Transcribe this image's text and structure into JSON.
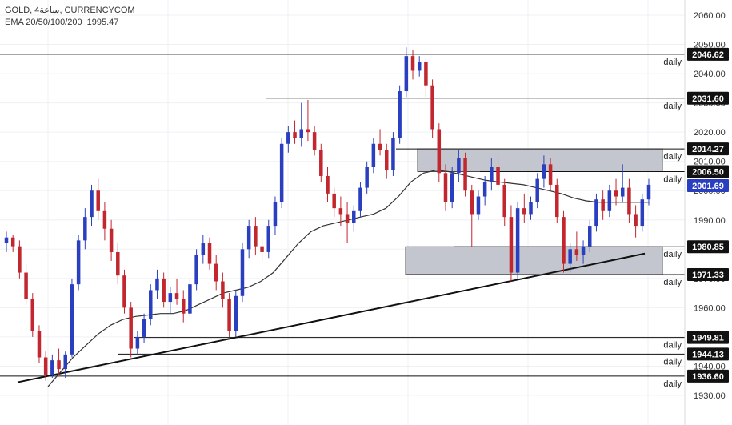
{
  "legend": {
    "symbol_line": "GOLD, 4ساعة, CURRENCYCOM",
    "ema_label": "EMA 20/50/100/200",
    "ema_value": "1995.47"
  },
  "chart_data": {
    "type": "candlestick",
    "symbol": "GOLD",
    "timeframe": "4ساعة",
    "source": "CURRENCYCOM",
    "ylim": [
      1927,
      2066
    ],
    "y_ticks": [
      "2060.00",
      "2050.00",
      "2040.00",
      "2030.00",
      "2020.00",
      "2010.00",
      "2000.00",
      "1990.00",
      "1980.00",
      "1970.00",
      "1960.00",
      "1950.00",
      "1940.00",
      "1930.00"
    ],
    "colors": {
      "up": "#2a3fbf",
      "down": "#c2262e",
      "level_line": "#111111",
      "zone_fill": "#c4c6cf",
      "ema": "#333333",
      "tag_bg": "#111111",
      "grid": "#eef0f4"
    },
    "levels": [
      {
        "value": 2046.62,
        "label": "2046.62",
        "daily": "daily"
      },
      {
        "value": 2031.6,
        "label": "2031.60",
        "daily": "daily"
      },
      {
        "value": 2014.27,
        "label": "2014.27",
        "daily": "daily"
      },
      {
        "value": 2006.5,
        "label": "2006.50",
        "daily": "daily"
      },
      {
        "value": 2001.69,
        "label": "2001.69",
        "daily": "",
        "current": true
      },
      {
        "value": 1980.85,
        "label": "1980.85",
        "daily": "daily"
      },
      {
        "value": 1971.33,
        "label": "1971.33",
        "daily": "daily"
      },
      {
        "value": 1949.81,
        "label": "1949.81",
        "daily": "daily"
      },
      {
        "value": 1944.13,
        "label": "1944.13",
        "daily": "daily"
      },
      {
        "value": 1936.6,
        "label": "1936.60",
        "daily": "daily"
      }
    ],
    "zones": [
      {
        "from": 2006.5,
        "to": 2014.27
      },
      {
        "from": 1971.33,
        "to": 1980.85
      }
    ],
    "trendline": {
      "start_price": 1934.5,
      "end_price": 1978.5
    },
    "ema_path": [
      1933,
      1938,
      1943,
      1947,
      1951,
      1954,
      1956,
      1957,
      1957.5,
      1958,
      1958,
      1959,
      1961,
      1963,
      1965,
      1966,
      1967,
      1969,
      1972,
      1977,
      1982,
      1986,
      1988,
      1989,
      1990,
      1991,
      1992,
      1994,
      1998,
      2003,
      2006,
      2007,
      2006.5,
      2005.5,
      2004.5,
      2003.5,
      2003,
      2002.5,
      2002,
      2001,
      2000,
      1999,
      1997.5,
      1996.5,
      1996,
      1996,
      1996,
      1996,
      1996
    ],
    "candles": [
      [
        1982,
        1986,
        1979,
        1984
      ],
      [
        1984,
        1985,
        1979,
        1981
      ],
      [
        1981,
        1983,
        1970,
        1972
      ],
      [
        1972,
        1975,
        1961,
        1963
      ],
      [
        1963,
        1965,
        1950,
        1952
      ],
      [
        1952,
        1954,
        1941,
        1943
      ],
      [
        1943,
        1945,
        1935,
        1937
      ],
      [
        1937,
        1944,
        1936,
        1942
      ],
      [
        1942,
        1946,
        1937,
        1939
      ],
      [
        1939,
        1945,
        1936,
        1944
      ],
      [
        1944,
        1970,
        1943,
        1968
      ],
      [
        1968,
        1985,
        1966,
        1983
      ],
      [
        1983,
        1994,
        1980,
        1991
      ],
      [
        1991,
        2002,
        1988,
        2000
      ],
      [
        2000,
        2004,
        1990,
        1993
      ],
      [
        1993,
        1996,
        1983,
        1987
      ],
      [
        1987,
        1990,
        1976,
        1979
      ],
      [
        1979,
        1982,
        1968,
        1971
      ],
      [
        1971,
        1973,
        1958,
        1960
      ],
      [
        1960,
        1962,
        1943,
        1946
      ],
      [
        1946,
        1952,
        1944,
        1950
      ],
      [
        1950,
        1958,
        1948,
        1956
      ],
      [
        1956,
        1968,
        1954,
        1966
      ],
      [
        1966,
        1973,
        1963,
        1970
      ],
      [
        1970,
        1972,
        1960,
        1962
      ],
      [
        1962,
        1967,
        1958,
        1965
      ],
      [
        1965,
        1970,
        1961,
        1963
      ],
      [
        1963,
        1966,
        1955,
        1958
      ],
      [
        1958,
        1970,
        1957,
        1968
      ],
      [
        1968,
        1980,
        1966,
        1978
      ],
      [
        1978,
        1985,
        1975,
        1982
      ],
      [
        1982,
        1984,
        1973,
        1975
      ],
      [
        1975,
        1978,
        1966,
        1969
      ],
      [
        1969,
        1972,
        1960,
        1963
      ],
      [
        1963,
        1965,
        1950,
        1952
      ],
      [
        1952,
        1966,
        1950,
        1964
      ],
      [
        1964,
        1982,
        1962,
        1980
      ],
      [
        1980,
        1990,
        1977,
        1988
      ],
      [
        1988,
        1991,
        1978,
        1981
      ],
      [
        1981,
        1984,
        1976,
        1979
      ],
      [
        1979,
        1990,
        1977,
        1988
      ],
      [
        1988,
        1998,
        1985,
        1996
      ],
      [
        1996,
        2018,
        1994,
        2016
      ],
      [
        2016,
        2022,
        2013,
        2020
      ],
      [
        2020,
        2024,
        2016,
        2018
      ],
      [
        2018,
        2030,
        2015,
        2021
      ],
      [
        2021,
        2031,
        2017,
        2020
      ],
      [
        2020,
        2022,
        2012,
        2014
      ],
      [
        2014,
        2016,
        2003,
        2005
      ],
      [
        2005,
        2008,
        1996,
        1999
      ],
      [
        1999,
        2001,
        1991,
        1994
      ],
      [
        1994,
        1998,
        1988,
        1992
      ],
      [
        1992,
        1996,
        1982,
        1989
      ],
      [
        1989,
        1995,
        1986,
        1993
      ],
      [
        1993,
        2003,
        1991,
        2001
      ],
      [
        2001,
        2010,
        1999,
        2008
      ],
      [
        2008,
        2018,
        2006,
        2016
      ],
      [
        2016,
        2021,
        2012,
        2014
      ],
      [
        2014,
        2016,
        2004,
        2007
      ],
      [
        2007,
        2020,
        2005,
        2018
      ],
      [
        2018,
        2036,
        2016,
        2034
      ],
      [
        2034,
        2049,
        2032,
        2046
      ],
      [
        2046,
        2048,
        2038,
        2041
      ],
      [
        2041,
        2046,
        2039,
        2044
      ],
      [
        2044,
        2045,
        2032,
        2036
      ],
      [
        2036,
        2038,
        2018,
        2021
      ],
      [
        2021,
        2023,
        2003,
        2006
      ],
      [
        2006,
        2009,
        1993,
        1996
      ],
      [
        1996,
        2008,
        1994,
        2006
      ],
      [
        2006,
        2014,
        2003,
        2011
      ],
      [
        2011,
        2013,
        1998,
        2000
      ],
      [
        2000,
        2002,
        1981,
        1992
      ],
      [
        1992,
        2000,
        1990,
        1998
      ],
      [
        1998,
        2005,
        1995,
        2003
      ],
      [
        2003,
        2011,
        2000,
        2008
      ],
      [
        2008,
        2012,
        2000,
        2002
      ],
      [
        2002,
        2004,
        1988,
        1991
      ],
      [
        1991,
        1995,
        1969,
        1972
      ],
      [
        1972,
        1996,
        1970,
        1994
      ],
      [
        1994,
        1999,
        1989,
        1992
      ],
      [
        1992,
        1998,
        1990,
        1996
      ],
      [
        1996,
        2006,
        1994,
        2004
      ],
      [
        2004,
        2012,
        2001,
        2009
      ],
      [
        2009,
        2011,
        2000,
        2002
      ],
      [
        2002,
        2004,
        1989,
        1991
      ],
      [
        1991,
        1993,
        1972,
        1975
      ],
      [
        1975,
        1982,
        1972,
        1980
      ],
      [
        1980,
        1986,
        1976,
        1978
      ],
      [
        1978,
        1983,
        1975,
        1981
      ],
      [
        1981,
        1990,
        1979,
        1988
      ],
      [
        1988,
        1999,
        1986,
        1997
      ],
      [
        1997,
        2000,
        1990,
        1993
      ],
      [
        1993,
        2002,
        1991,
        2000
      ],
      [
        2000,
        2004,
        1995,
        1998
      ],
      [
        1998,
        2009,
        1996,
        2001
      ],
      [
        2001,
        2004,
        1989,
        1992
      ],
      [
        1992,
        1995,
        1984,
        1988
      ],
      [
        1988,
        1999,
        1986,
        1997
      ],
      [
        1997,
        2004,
        1995,
        2002
      ]
    ]
  }
}
